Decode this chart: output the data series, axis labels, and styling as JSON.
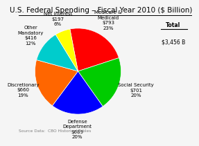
{
  "title": "U.S. Federal Spending – Fiscal Year 2010 ($ Billion)",
  "source": "Source Data:  CBO Historical Tables",
  "total_label_line1": "Total",
  "total_label_line2": "$3,456 B",
  "slices": [
    {
      "label": "Medicare &\nMedicaid\n$793\n23%",
      "value": 793,
      "color": "#ff0000"
    },
    {
      "label": "Social Security\n$701\n20%",
      "value": 701,
      "color": "#00cc00"
    },
    {
      "label": "Defense\nDepartment\n$689\n20%",
      "value": 689,
      "color": "#0000ff"
    },
    {
      "label": "Discretionary\n$660\n19%",
      "value": 660,
      "color": "#ff6600"
    },
    {
      "label": "Other\nMandatory\n$416\n12%",
      "value": 416,
      "color": "#00cccc"
    },
    {
      "label": "Net Interest\n$197\n6%",
      "value": 197,
      "color": "#ffff00"
    }
  ],
  "startangle": 100.8,
  "label_offsets": [
    1.38,
    1.42,
    1.35,
    1.35,
    1.38,
    1.3
  ],
  "bg_color": "#f5f5f5",
  "title_fontsize": 7.5,
  "label_fontsize": 5.0,
  "source_fontsize": 4.2,
  "total_fontsize": 5.5
}
